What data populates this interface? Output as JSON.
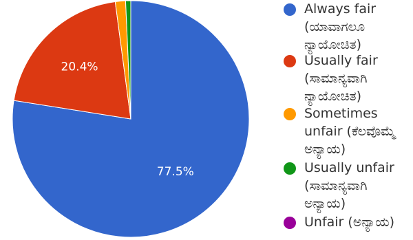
{
  "chart_data": {
    "type": "pie",
    "slices": [
      {
        "label": "Always fair (ಯಾವಾಗಲೂ ನ್ಯಾಯೋಚಿತ)",
        "legend_lines": [
          "Always fair",
          "(ಯಾವಾಗಲೂ",
          "ನ್ಯಾಯೋಚಿತ)"
        ],
        "value": 77.5,
        "data_label": "77.5%",
        "color": "#3366cc"
      },
      {
        "label": "Usually fair (ಸಾಮಾನ್ಯವಾಗಿ ನ್ಯಾಯೋಚಿತ)",
        "legend_lines": [
          "Usually fair",
          "(ಸಾಮಾನ್ಯವಾಗಿ",
          "ನ್ಯಾಯೋಚಿತ)"
        ],
        "value": 20.4,
        "data_label": "20.4%",
        "color": "#dc3912"
      },
      {
        "label": "Sometimes unfair (ಕೆಲವೊಮ್ಮೆ ಅನ್ಯಾಯ)",
        "legend_lines": [
          "Sometimes",
          "unfair (ಕೆಲವೊಮ್ಮೆ",
          "ಅನ್ಯಾಯ)"
        ],
        "value": 1.4,
        "data_label": "",
        "color": "#ff9900"
      },
      {
        "label": "Usually unfair (ಸಾಮಾನ್ಯವಾಗಿ ಅನ್ಯಾಯ)",
        "legend_lines": [
          "Usually unfair",
          "(ಸಾಮಾನ್ಯವಾಗಿ",
          "ಅನ್ಯಾಯ)"
        ],
        "value": 0.7,
        "data_label": "",
        "color": "#109618"
      },
      {
        "label": "Unfair (ಅನ್ಯಾಯ)",
        "legend_lines": [
          "Unfair (ಅನ್ಯಾಯ)"
        ],
        "value": 0,
        "data_label": "",
        "color": "#990099"
      }
    ],
    "legend_position": "right",
    "start_angle": "top",
    "direction": "clockwise"
  }
}
